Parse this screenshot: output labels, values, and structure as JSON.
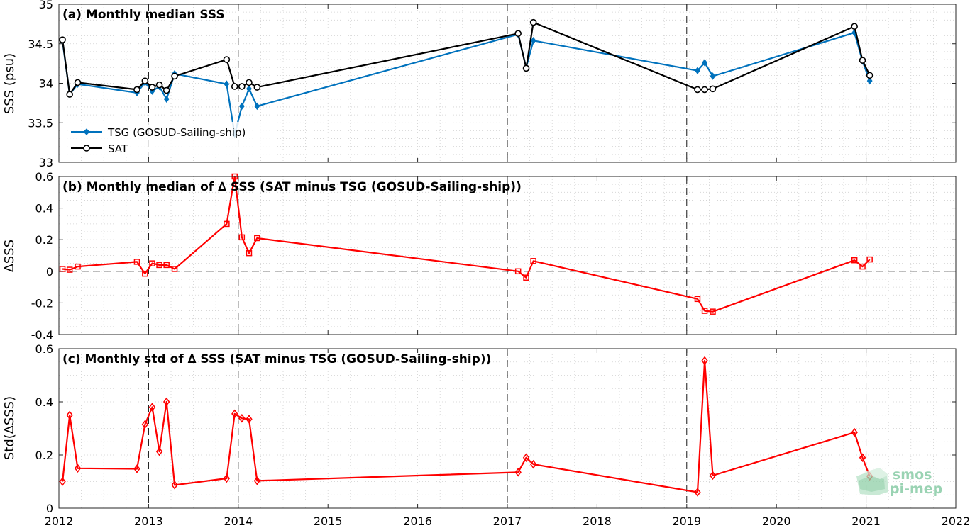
{
  "chart_data": [
    {
      "type": "line",
      "title": "(a) Monthly median SSS",
      "ylabel": "SSS (psu)",
      "xlim": [
        2012,
        2022
      ],
      "ylim": [
        33,
        35
      ],
      "yticks": [
        33,
        33.5,
        34,
        34.5,
        35
      ],
      "ytick_labels": [
        "33",
        "33.5",
        "34",
        "34.5",
        "35"
      ],
      "grid": "minor dotted",
      "legend_position": "bottom-left",
      "series": [
        {
          "name": "TSG (GOSUD-Sailing-ship)",
          "color": "#0072bd",
          "marker": "diamond",
          "x": [
            2012.04,
            2012.12,
            2012.21,
            2012.87,
            2012.96,
            2013.04,
            2013.12,
            2013.2,
            2013.29,
            2013.87,
            2013.96,
            2014.04,
            2014.12,
            2014.21,
            2017.12,
            2017.21,
            2017.29,
            2019.12,
            2019.2,
            2019.29,
            2020.87,
            2020.96,
            2021.04
          ],
          "y": [
            34.53,
            33.86,
            33.99,
            33.88,
            34.01,
            33.9,
            33.96,
            33.8,
            34.12,
            33.99,
            33.35,
            33.71,
            33.93,
            33.71,
            34.62,
            34.2,
            34.54,
            34.16,
            34.26,
            34.09,
            34.64,
            34.28,
            34.03
          ]
        },
        {
          "name": "SAT",
          "color": "#000000",
          "marker": "circle",
          "x": [
            2012.04,
            2012.12,
            2012.21,
            2012.87,
            2012.96,
            2013.04,
            2013.12,
            2013.2,
            2013.29,
            2013.87,
            2013.96,
            2014.04,
            2014.12,
            2014.21,
            2017.12,
            2017.21,
            2017.29,
            2019.12,
            2019.2,
            2019.29,
            2020.87,
            2020.96,
            2021.04
          ],
          "y": [
            34.55,
            33.86,
            34.01,
            33.92,
            34.03,
            33.95,
            33.98,
            33.91,
            34.09,
            34.3,
            33.96,
            33.96,
            34.01,
            33.95,
            34.63,
            34.19,
            34.77,
            33.92,
            33.92,
            33.93,
            34.72,
            34.29,
            34.1
          ]
        }
      ]
    },
    {
      "type": "line",
      "title": "(b) Monthly median of ∆ SSS (SAT minus TSG (GOSUD-Sailing-ship))",
      "ylabel": "∆SSS",
      "xlim": [
        2012,
        2022
      ],
      "ylim": [
        -0.4,
        0.6
      ],
      "yticks": [
        -0.4,
        -0.2,
        0,
        0.2,
        0.4,
        0.6
      ],
      "ytick_labels": [
        "-0.4",
        "-0.2",
        "0",
        "0.2",
        "0.4",
        "0.6"
      ],
      "zero_line": "dashed",
      "grid": "minor dotted",
      "series": [
        {
          "color": "#ff0000",
          "marker": "square",
          "x": [
            2012.04,
            2012.12,
            2012.21,
            2012.87,
            2012.96,
            2013.04,
            2013.12,
            2013.2,
            2013.29,
            2013.87,
            2013.96,
            2014.04,
            2014.12,
            2014.21,
            2017.12,
            2017.21,
            2017.29,
            2019.12,
            2019.2,
            2019.29,
            2020.87,
            2020.96,
            2021.04
          ],
          "y": [
            0.015,
            0.01,
            0.03,
            0.06,
            -0.015,
            0.05,
            0.04,
            0.04,
            0.015,
            0.3,
            0.6,
            0.215,
            0.115,
            0.21,
            0.0,
            -0.04,
            0.065,
            -0.175,
            -0.25,
            -0.255,
            0.07,
            0.03,
            0.075
          ]
        }
      ]
    },
    {
      "type": "line",
      "title": "(c) Monthly std of ∆ SSS (SAT minus TSG (GOSUD-Sailing-ship))",
      "ylabel": "Std(∆SSS)",
      "xlabel": "",
      "xlim": [
        2012,
        2022
      ],
      "ylim": [
        0,
        0.6
      ],
      "yticks": [
        0,
        0.2,
        0.4,
        0.6
      ],
      "ytick_labels": [
        "0",
        "0.2",
        "0.4",
        "0.6"
      ],
      "grid": "minor dotted",
      "series": [
        {
          "color": "#ff0000",
          "marker": "diamond",
          "x": [
            2012.04,
            2012.12,
            2012.21,
            2012.87,
            2012.96,
            2013.04,
            2013.12,
            2013.2,
            2013.29,
            2013.87,
            2013.96,
            2014.04,
            2014.12,
            2014.21,
            2017.12,
            2017.21,
            2017.29,
            2019.12,
            2019.2,
            2019.29,
            2020.87,
            2020.96,
            2021.04
          ],
          "y": [
            0.1,
            0.35,
            0.15,
            0.148,
            0.315,
            0.38,
            0.213,
            0.4,
            0.087,
            0.112,
            0.355,
            0.338,
            0.335,
            0.103,
            0.135,
            0.19,
            0.165,
            0.06,
            0.555,
            0.123,
            0.285,
            0.19,
            0.12
          ]
        }
      ]
    }
  ],
  "x_axis": {
    "ticks": [
      2012,
      2013,
      2014,
      2015,
      2016,
      2017,
      2018,
      2019,
      2020,
      2021,
      2022
    ],
    "tick_labels": [
      "2012",
      "2013",
      "2014",
      "2015",
      "2016",
      "2017",
      "2018",
      "2019",
      "2020",
      "2021",
      "2022"
    ],
    "year_lines": [
      2013,
      2014,
      2017,
      2019,
      2021
    ],
    "year_line_style": "dashed"
  },
  "logo": {
    "line1": "smos",
    "line2": "pi-mep",
    "color": "#9ad3b3"
  }
}
